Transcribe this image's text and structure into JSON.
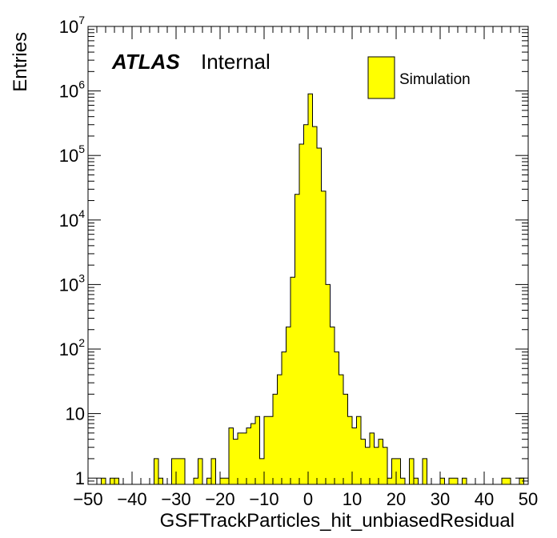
{
  "chart_data": {
    "type": "bar",
    "title": "",
    "xlabel": "GSFTrackParticles_hit_unbiasedResidual",
    "ylabel": "Entries",
    "xlim": [
      -50,
      50
    ],
    "ylim": [
      0.8,
      10000000
    ],
    "yscale": "log",
    "bin_width": 1,
    "fill_color": "#ffff00",
    "line_color": "#000000",
    "grid": false,
    "legend_placement": "top-right",
    "x_ticks": [
      "−50",
      "−40",
      "−30",
      "−20",
      "−10",
      "0",
      "10",
      "20",
      "30",
      "40",
      "50"
    ],
    "y_ticks": [
      {
        "mantissa": "1",
        "exp": ""
      },
      {
        "mantissa": "10",
        "exp": ""
      },
      {
        "mantissa": "10",
        "exp": "2"
      },
      {
        "mantissa": "10",
        "exp": "3"
      },
      {
        "mantissa": "10",
        "exp": "4"
      },
      {
        "mantissa": "10",
        "exp": "5"
      },
      {
        "mantissa": "10",
        "exp": "6"
      },
      {
        "mantissa": "10",
        "exp": "7"
      }
    ],
    "series": [
      {
        "name": "Simulation",
        "bins": [
          {
            "x": -47,
            "y": 1
          },
          {
            "x": -45,
            "y": 1
          },
          {
            "x": -44,
            "y": 1
          },
          {
            "x": -35,
            "y": 2
          },
          {
            "x": -34,
            "y": 1
          },
          {
            "x": -31,
            "y": 2
          },
          {
            "x": -30,
            "y": 2
          },
          {
            "x": -29,
            "y": 2
          },
          {
            "x": -26,
            "y": 1
          },
          {
            "x": -25,
            "y": 2
          },
          {
            "x": -23,
            "y": 1
          },
          {
            "x": -22,
            "y": 2
          },
          {
            "x": -20,
            "y": 1
          },
          {
            "x": -19,
            "y": 1
          },
          {
            "x": -18,
            "y": 6
          },
          {
            "x": -17,
            "y": 4
          },
          {
            "x": -16,
            "y": 5
          },
          {
            "x": -15,
            "y": 5
          },
          {
            "x": -14,
            "y": 6
          },
          {
            "x": -13,
            "y": 7
          },
          {
            "x": -12,
            "y": 9
          },
          {
            "x": -11,
            "y": 2
          },
          {
            "x": -10,
            "y": 9
          },
          {
            "x": -9,
            "y": 9
          },
          {
            "x": -8,
            "y": 20
          },
          {
            "x": -7,
            "y": 40
          },
          {
            "x": -6,
            "y": 90
          },
          {
            "x": -5,
            "y": 220
          },
          {
            "x": -4,
            "y": 1300
          },
          {
            "x": -3,
            "y": 25000
          },
          {
            "x": -2,
            "y": 150000
          },
          {
            "x": -1,
            "y": 300000
          },
          {
            "x": 0,
            "y": 900000
          },
          {
            "x": 1,
            "y": 280000
          },
          {
            "x": 2,
            "y": 130000
          },
          {
            "x": 3,
            "y": 28000
          },
          {
            "x": 4,
            "y": 1000
          },
          {
            "x": 5,
            "y": 220
          },
          {
            "x": 6,
            "y": 90
          },
          {
            "x": 7,
            "y": 40
          },
          {
            "x": 8,
            "y": 20
          },
          {
            "x": 9,
            "y": 9
          },
          {
            "x": 10,
            "y": 6
          },
          {
            "x": 11,
            "y": 9
          },
          {
            "x": 12,
            "y": 4
          },
          {
            "x": 13,
            "y": 3
          },
          {
            "x": 14,
            "y": 5
          },
          {
            "x": 15,
            "y": 3
          },
          {
            "x": 16,
            "y": 4
          },
          {
            "x": 17,
            "y": 3
          },
          {
            "x": 18,
            "y": 1
          },
          {
            "x": 19,
            "y": 2
          },
          {
            "x": 20,
            "y": 2
          },
          {
            "x": 21,
            "y": 1
          },
          {
            "x": 23,
            "y": 2
          },
          {
            "x": 24,
            "y": 1
          },
          {
            "x": 26,
            "y": 2
          },
          {
            "x": 30,
            "y": 1
          },
          {
            "x": 32,
            "y": 1
          },
          {
            "x": 33,
            "y": 1
          },
          {
            "x": 35,
            "y": 1
          },
          {
            "x": 44,
            "y": 1
          },
          {
            "x": 45,
            "y": 1
          },
          {
            "x": 48,
            "y": 1
          }
        ]
      }
    ],
    "annotations": {
      "atlas": "ATLAS",
      "label": "Internal"
    }
  }
}
